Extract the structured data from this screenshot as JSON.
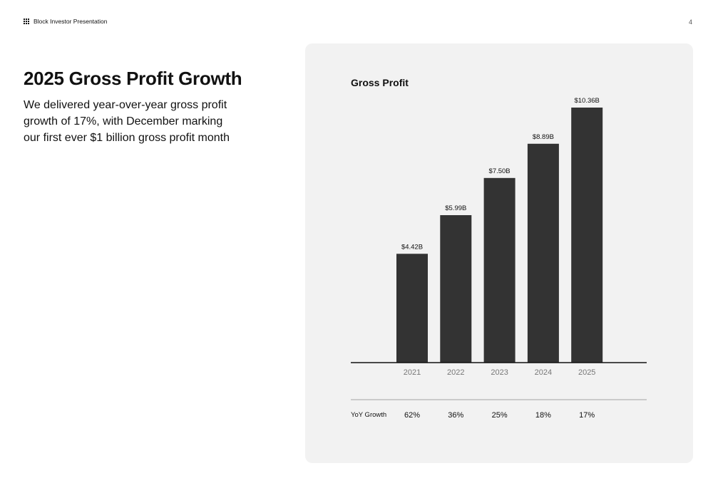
{
  "header": {
    "title": "Block Investor Presentation",
    "page_number": "4",
    "logo_icon": "block-grid-logo-icon"
  },
  "headline": "2025 Gross Profit Growth",
  "subtext": "We delivered year-over-year gross profit growth of 17%, with December marking our first ever $1 billion gross profit month",
  "colors": {
    "bar": "#333333",
    "panel": "#f2f2f2",
    "axis": "#111111",
    "muted": "#777777"
  },
  "chart_data": {
    "type": "bar",
    "title": "Gross Profit",
    "categories": [
      "2021",
      "2022",
      "2023",
      "2024",
      "2025"
    ],
    "values": [
      4.42,
      5.99,
      7.5,
      8.89,
      10.36
    ],
    "unit": "B",
    "data_labels": [
      "$4.42B",
      "$5.99B",
      "$7.50B",
      "$8.89B",
      "$10.36B"
    ],
    "ylim": [
      0,
      10.36
    ],
    "grid": false,
    "growth_row": {
      "label": "YoY Growth",
      "values": [
        "62%",
        "36%",
        "25%",
        "18%",
        "17%"
      ]
    }
  }
}
